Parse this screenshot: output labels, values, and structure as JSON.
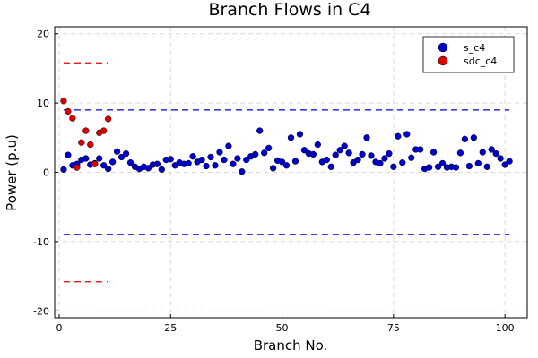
{
  "chart_data": {
    "type": "scatter",
    "title": "Branch Flows in C4",
    "xlabel": "Branch No.",
    "ylabel": "Power (p.u)",
    "xlim": [
      -1,
      105
    ],
    "ylim": [
      -21,
      21
    ],
    "xticks": [
      0,
      25,
      50,
      75,
      100
    ],
    "yticks": [
      -20,
      -10,
      0,
      10,
      20
    ],
    "grid": true,
    "legend_position": "top-right",
    "series": [
      {
        "name": "s_c4",
        "color": "#0000cc",
        "x": [
          1,
          2,
          3,
          4,
          5,
          6,
          7,
          8,
          9,
          10,
          11,
          12,
          13,
          14,
          15,
          16,
          17,
          18,
          19,
          20,
          21,
          22,
          23,
          24,
          25,
          26,
          27,
          28,
          29,
          30,
          31,
          32,
          33,
          34,
          35,
          36,
          37,
          38,
          39,
          40,
          41,
          42,
          43,
          44,
          45,
          46,
          47,
          48,
          49,
          50,
          51,
          52,
          53,
          54,
          55,
          56,
          57,
          58,
          59,
          60,
          61,
          62,
          63,
          64,
          65,
          66,
          67,
          68,
          69,
          70,
          71,
          72,
          73,
          74,
          75,
          76,
          77,
          78,
          79,
          80,
          81,
          82,
          83,
          84,
          85,
          86,
          87,
          88,
          89,
          90,
          91,
          92,
          93,
          94,
          95,
          96,
          97,
          98,
          99,
          100,
          101
        ],
        "y": [
          0.4,
          2.5,
          1.0,
          1.2,
          1.8,
          2.0,
          1.1,
          1.3,
          2.0,
          1.0,
          0.5,
          1.5,
          3.0,
          2.2,
          2.7,
          1.4,
          0.8,
          0.5,
          0.8,
          0.6,
          1.1,
          1.2,
          0.4,
          1.8,
          1.9,
          1.0,
          1.4,
          1.2,
          1.3,
          2.3,
          1.5,
          1.8,
          0.9,
          2.2,
          1.0,
          2.9,
          1.8,
          3.8,
          1.2,
          2.0,
          0.1,
          1.8,
          2.3,
          2.6,
          6.0,
          2.8,
          3.5,
          0.6,
          1.7,
          1.5,
          1.0,
          5.0,
          1.6,
          5.5,
          3.2,
          2.7,
          2.6,
          4.0,
          1.5,
          1.8,
          0.8,
          2.5,
          3.2,
          3.8,
          2.8,
          1.4,
          1.8,
          2.6,
          5.0,
          2.4,
          1.5,
          1.3,
          2.0,
          2.7,
          0.8,
          5.2,
          1.4,
          5.5,
          2.1,
          3.3,
          3.3,
          0.5,
          0.7,
          2.9,
          0.8,
          1.3,
          0.7,
          0.8,
          0.7,
          2.8,
          4.8,
          0.9,
          5.0,
          1.3,
          2.9,
          0.8,
          3.3,
          2.7,
          2.0,
          1.1,
          1.6
        ]
      },
      {
        "name": "sdc_c4",
        "color": "#dd0000",
        "x": [
          1,
          2,
          3,
          4,
          5,
          6,
          7,
          8,
          9,
          10,
          11
        ],
        "y": [
          10.3,
          8.8,
          7.8,
          0.7,
          4.3,
          6.0,
          4.0,
          1.2,
          5.7,
          6.0,
          7.7
        ]
      }
    ],
    "limit_lines": [
      {
        "color": "#0000cc",
        "y": 9.0,
        "x_range": [
          1,
          101
        ]
      },
      {
        "color": "#0000cc",
        "y": -9.0,
        "x_range": [
          1,
          101
        ]
      },
      {
        "color": "#dd0000",
        "y": 15.8,
        "x_range": [
          1,
          11
        ]
      },
      {
        "color": "#dd0000",
        "y": -15.8,
        "x_range": [
          1,
          11
        ]
      }
    ]
  }
}
